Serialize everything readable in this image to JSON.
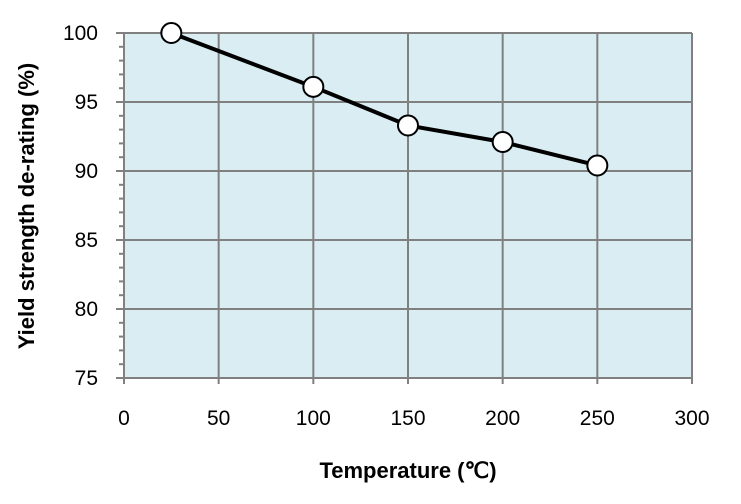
{
  "chart_data": {
    "type": "line",
    "title": "",
    "xlabel": "Temperature (℃)",
    "ylabel": "Yield strength de-rating (%)",
    "xlim": [
      0,
      300
    ],
    "ylim": [
      75,
      100
    ],
    "xticks": [
      0,
      50,
      100,
      150,
      200,
      250,
      300
    ],
    "yticks": [
      75,
      80,
      85,
      90,
      95,
      100
    ],
    "grid": true,
    "x": [
      25,
      100,
      150,
      200,
      250
    ],
    "series": [
      {
        "values": [
          100,
          96.1,
          93.3,
          92.1,
          90.4
        ]
      }
    ],
    "colors": {
      "plot_background": "#daedf3",
      "grid": "#808080",
      "line": "#000000",
      "marker_fill": "#ffffff"
    }
  }
}
